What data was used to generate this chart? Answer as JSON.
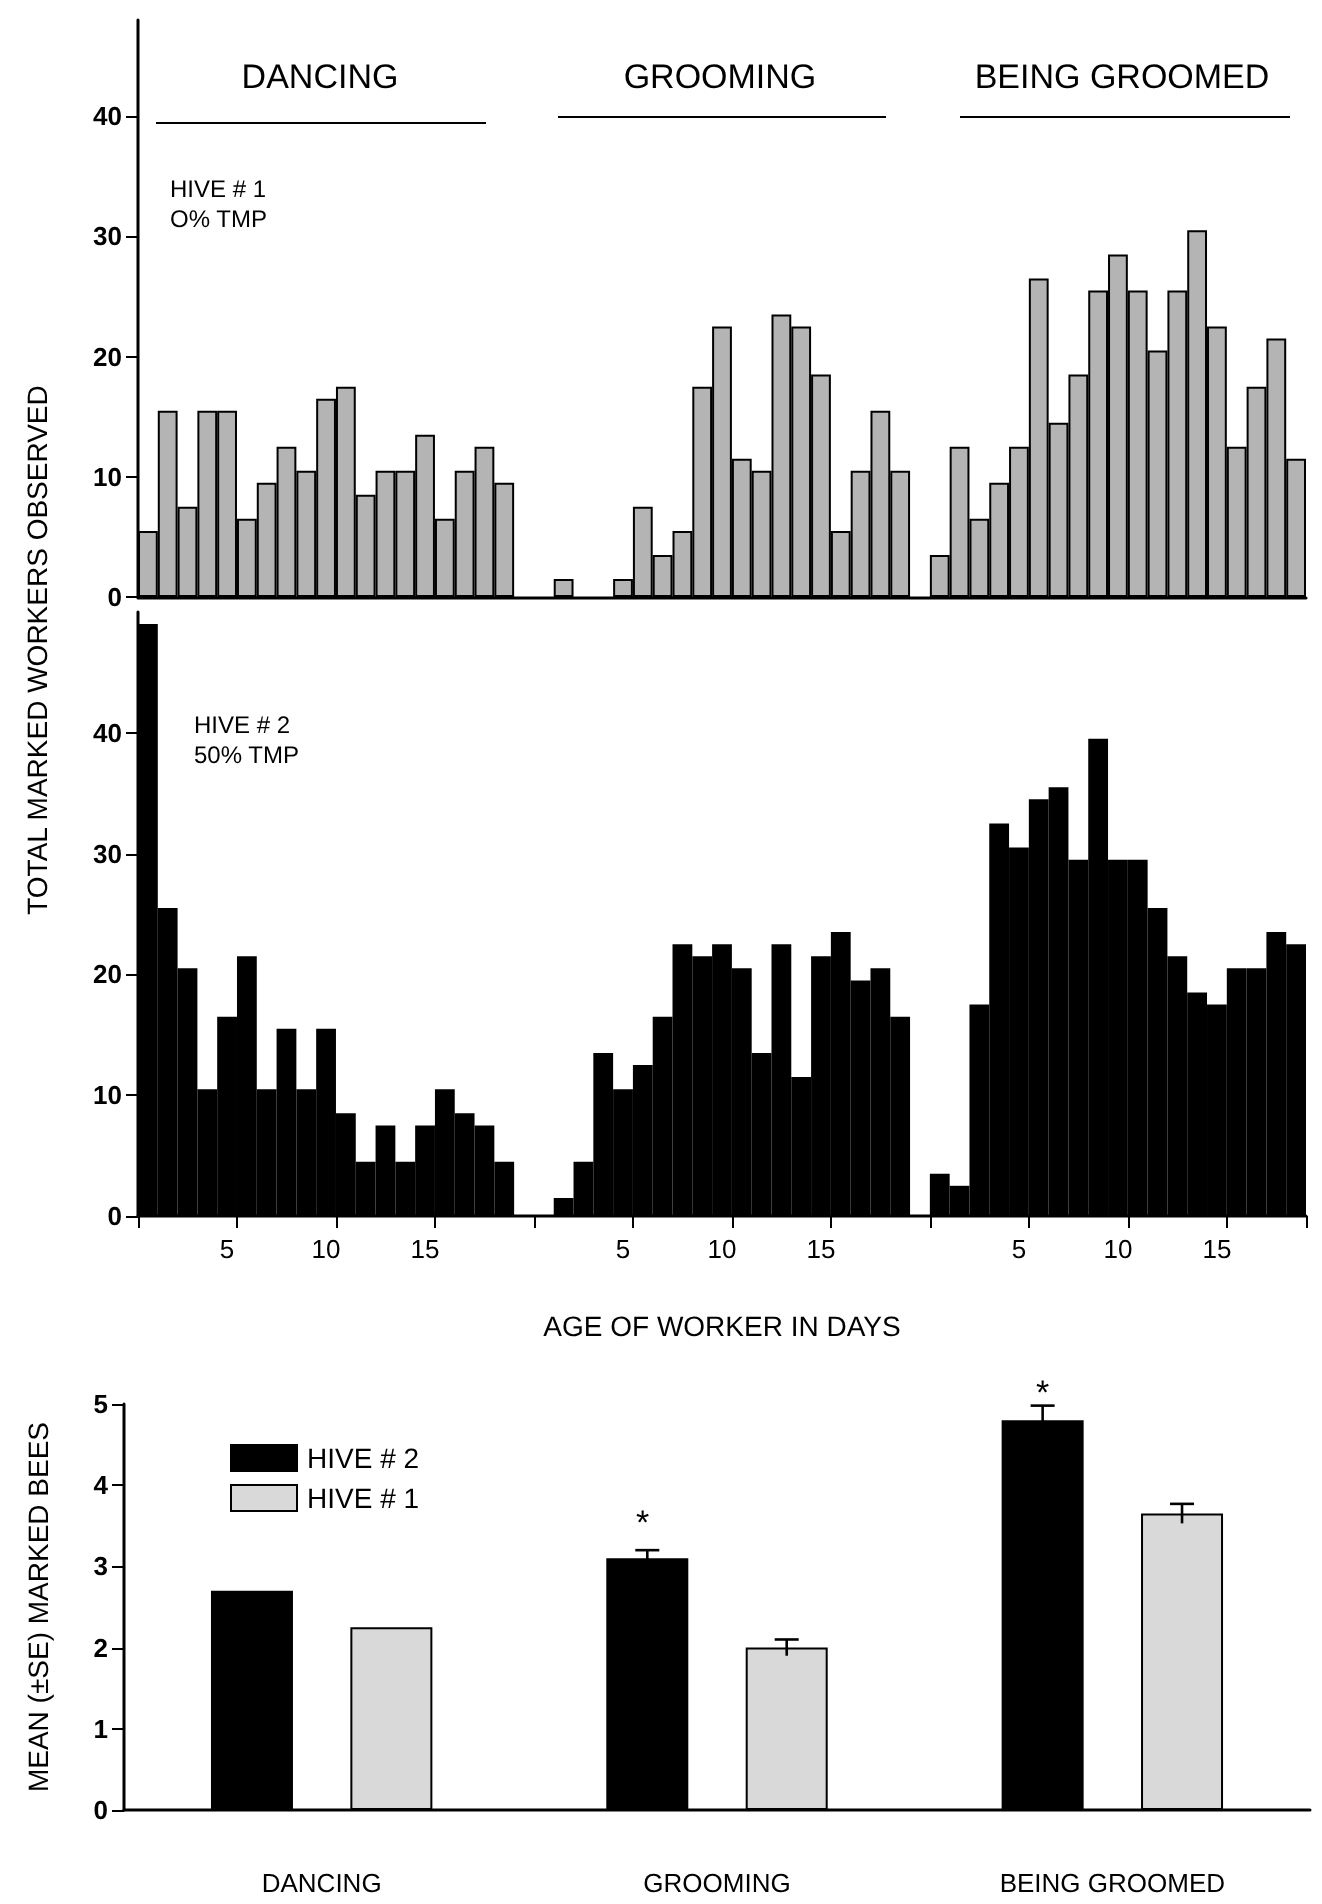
{
  "chart_data": [
    {
      "type": "bar",
      "ylabel": "TOTAL MARKED WORKERS OBSERVED",
      "annotations": [
        "DANCING",
        "GROOMING",
        "BEING GROOMED",
        "HIVE # 1\nO% TMP"
      ],
      "categories": [
        null,
        null,
        null,
        null,
        "5",
        null,
        null,
        null,
        null,
        "10",
        null,
        null,
        null,
        null,
        "15",
        null,
        null,
        null,
        null,
        null,
        null,
        null,
        null,
        null,
        "5",
        null,
        null,
        null,
        null,
        "10",
        null,
        null,
        null,
        null,
        "15",
        null,
        null,
        null,
        null,
        null,
        null,
        null,
        null,
        null,
        "5",
        null,
        null,
        null,
        null,
        "10",
        null,
        null,
        null,
        null,
        "15",
        null,
        null,
        null,
        null
      ],
      "values": [
        5.5,
        15.5,
        7.5,
        15.5,
        15.5,
        6.5,
        9.5,
        12.5,
        10.5,
        16.5,
        17.5,
        8.5,
        10.5,
        10.5,
        13.5,
        6.5,
        10.5,
        12.5,
        9.5,
        null,
        null,
        1.5,
        null,
        null,
        1.5,
        7.5,
        3.5,
        5.5,
        17.5,
        22.5,
        11.5,
        10.5,
        23.5,
        22.5,
        18.5,
        5.5,
        10.5,
        15.5,
        10.5,
        null,
        3.5,
        12.5,
        6.5,
        9.5,
        12.5,
        26.5,
        14.5,
        18.5,
        25.5,
        28.5,
        25.5,
        20.5,
        25.5,
        30.5,
        22.5,
        12.5,
        17.5,
        21.5,
        11.5
      ],
      "color": "#b4b4b4",
      "ylim": [
        0,
        48
      ],
      "yticks": [
        0,
        10,
        20,
        30,
        40
      ],
      "tick_labels": "y"
    },
    {
      "type": "bar",
      "xlabel": "AGE OF WORKER IN DAYS",
      "annotations": [
        "HIVE # 2\n50% TMP"
      ],
      "categories": [
        null,
        null,
        null,
        null,
        "5",
        null,
        null,
        null,
        null,
        "10",
        null,
        null,
        null,
        null,
        "15",
        null,
        null,
        null,
        null,
        null,
        null,
        null,
        null,
        null,
        "5",
        null,
        null,
        null,
        null,
        "10",
        null,
        null,
        null,
        null,
        "15",
        null,
        null,
        null,
        null,
        null,
        null,
        null,
        null,
        null,
        "5",
        null,
        null,
        null,
        null,
        "10",
        null,
        null,
        null,
        null,
        "15",
        null,
        null,
        null,
        null
      ],
      "values": [
        49,
        25.5,
        20.5,
        10.5,
        16.5,
        21.5,
        10.5,
        15.5,
        10.5,
        15.5,
        8.5,
        4.5,
        7.5,
        4.5,
        7.5,
        10.5,
        8.5,
        7.5,
        4.5,
        null,
        null,
        1.5,
        4.5,
        13.5,
        10.5,
        12.5,
        16.5,
        22.5,
        21.5,
        22.5,
        20.5,
        13.5,
        22.5,
        11.5,
        21.5,
        23.5,
        19.5,
        20.5,
        16.5,
        null,
        3.5,
        2.5,
        17.5,
        32.5,
        30.5,
        34.5,
        35.5,
        29.5,
        39.5,
        29.5,
        29.5,
        25.5,
        21.5,
        18.5,
        17.5,
        20.5,
        20.5,
        23.5,
        22.5
      ],
      "color": "#000000",
      "ylim": [
        0,
        50
      ],
      "yticks": [
        0,
        10,
        20,
        30,
        40
      ]
    },
    {
      "type": "bar",
      "ylabel": "MEAN (±SE) MARKED BEES",
      "categories": [
        "DANCING",
        "GROOMING",
        "BEING GROOMED"
      ],
      "series": [
        {
          "name": "HIVE # 2",
          "color": "#000000",
          "values": [
            2.7,
            3.1,
            4.8
          ],
          "errors": [
            null,
            0.1,
            0.18
          ]
        },
        {
          "name": "HIVE # 1",
          "color": "#d9d9d9",
          "values": [
            2.25,
            2.0,
            3.65
          ],
          "errors": [
            null,
            0.1,
            0.12
          ]
        }
      ],
      "ylim": [
        0,
        5
      ],
      "yticks": [
        0,
        1,
        2,
        3,
        4,
        5
      ],
      "legend": "top left",
      "annotations": [
        "*",
        "*"
      ]
    }
  ]
}
